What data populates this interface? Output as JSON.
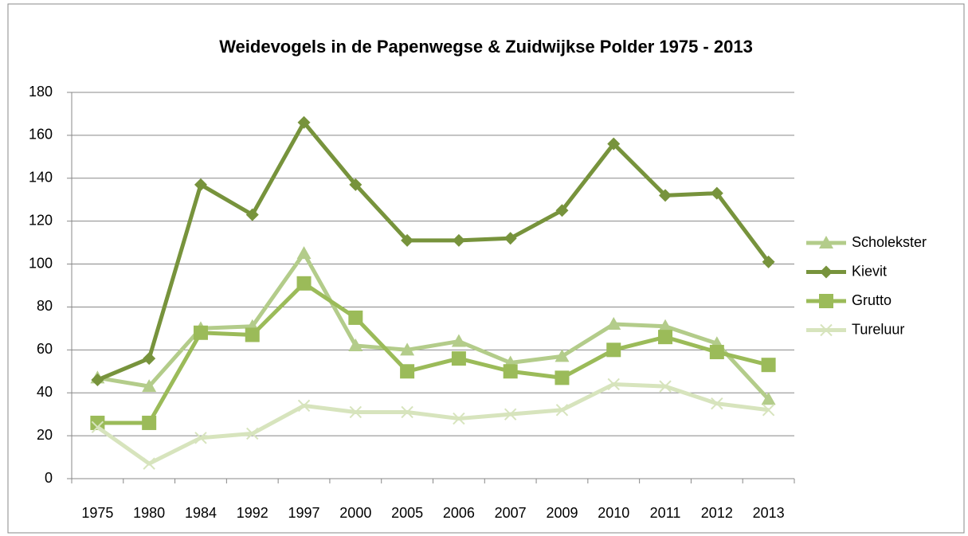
{
  "chart_data": {
    "type": "line",
    "title": "Weidevogels in de Papenwegse & Zuidwijkse Polder 1975 - 2013",
    "categories": [
      "1975",
      "1980",
      "1984",
      "1992",
      "1997",
      "2000",
      "2005",
      "2006",
      "2007",
      "2009",
      "2010",
      "2011",
      "2012",
      "2013"
    ],
    "series": [
      {
        "name": "Scholekster",
        "color": "#b3cc8a",
        "marker": "triangle",
        "values": [
          47,
          43,
          70,
          71,
          105,
          62,
          60,
          64,
          54,
          57,
          72,
          71,
          63,
          37
        ]
      },
      {
        "name": "Kievit",
        "color": "#77933c",
        "marker": "diamond",
        "values": [
          46,
          56,
          137,
          123,
          166,
          137,
          111,
          111,
          112,
          125,
          156,
          132,
          133,
          101
        ]
      },
      {
        "name": "Grutto",
        "color": "#9bbb59",
        "marker": "square",
        "values": [
          26,
          26,
          68,
          67,
          91,
          75,
          50,
          56,
          50,
          47,
          60,
          66,
          59,
          53
        ]
      },
      {
        "name": "Tureluur",
        "color": "#d7e4bd",
        "marker": "x",
        "values": [
          24,
          7,
          19,
          21,
          34,
          31,
          31,
          28,
          30,
          32,
          44,
          43,
          35,
          32
        ]
      }
    ],
    "ylim": [
      0,
      180
    ],
    "yticks": [
      0,
      20,
      40,
      60,
      80,
      100,
      120,
      140,
      160,
      180
    ],
    "grid": true,
    "legend": "right"
  }
}
